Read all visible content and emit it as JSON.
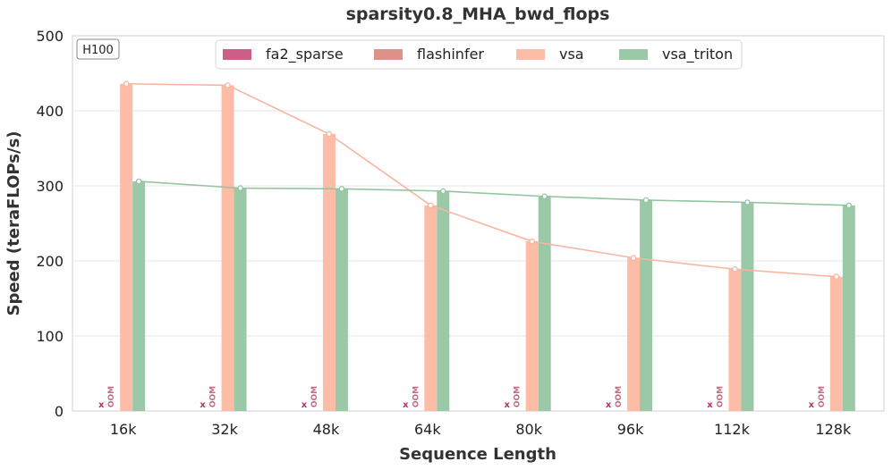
{
  "chart_data": {
    "type": "bar",
    "title": "sparsity0.8_MHA_bwd_flops",
    "xlabel": "Sequence Length",
    "ylabel": "Speed (teraFLOPs/s)",
    "ylim": [
      0,
      500
    ],
    "yticks": [
      0,
      100,
      200,
      300,
      400,
      500
    ],
    "grid": true,
    "legend_position": "top-center",
    "badge": "H100",
    "categories": [
      "16k",
      "32k",
      "48k",
      "64k",
      "80k",
      "96k",
      "112k",
      "128k"
    ],
    "series": [
      {
        "name": "fa2_sparse",
        "color": "#cd5f86",
        "values": [
          null,
          null,
          null,
          null,
          null,
          null,
          null,
          null
        ],
        "marker": "x"
      },
      {
        "name": "flashinfer",
        "color": "#e0908b",
        "values": [
          null,
          null,
          null,
          null,
          null,
          null,
          null,
          null
        ],
        "marker": "OOM"
      },
      {
        "name": "vsa",
        "color": "#fdbca6",
        "values": [
          436,
          434,
          369,
          274,
          226,
          204,
          189,
          179
        ]
      },
      {
        "name": "vsa_triton",
        "color": "#9bc9a8",
        "values": [
          306,
          297,
          296,
          293,
          286,
          281,
          278,
          274
        ]
      }
    ],
    "annotations": {
      "oom_label": "OOM",
      "missing_marker": "x"
    },
    "line_colors": {
      "vsa": "#f8b5a0",
      "vsa_triton": "#93c59f"
    }
  }
}
